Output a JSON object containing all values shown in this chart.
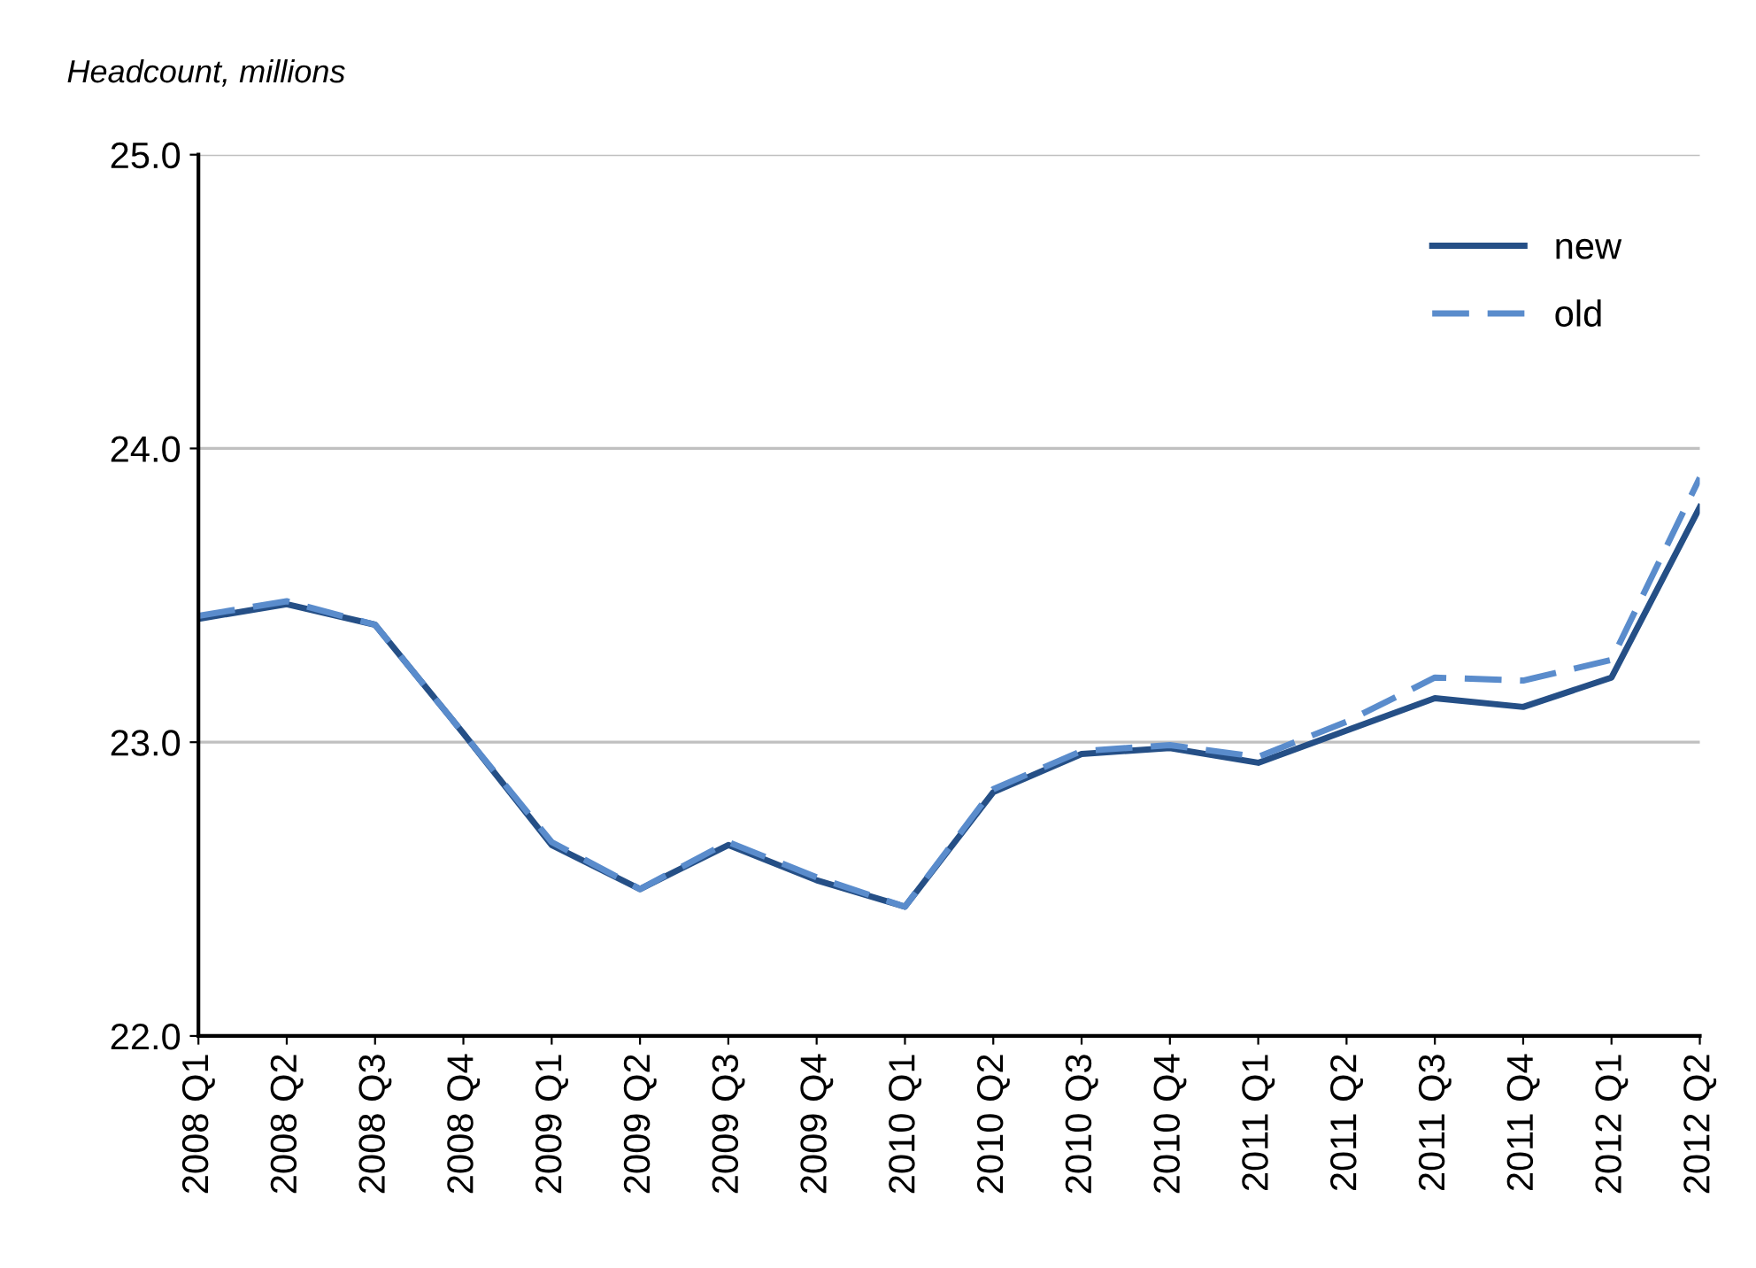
{
  "chart_data": {
    "type": "line",
    "ylabel": "Headcount, millions",
    "categories": [
      "2008 Q1",
      "2008 Q2",
      "2008 Q3",
      "2008 Q4",
      "2009 Q1",
      "2009 Q2",
      "2009 Q3",
      "2009 Q4",
      "2010 Q1",
      "2010 Q2",
      "2010 Q3",
      "2010 Q4",
      "2011 Q1",
      "2011 Q2",
      "2011 Q3",
      "2011 Q4",
      "2012 Q1",
      "2012 Q2"
    ],
    "series": [
      {
        "name": "new",
        "color": "#254f86",
        "line_style": "solid",
        "values": [
          23.42,
          23.47,
          23.4,
          23.03,
          22.65,
          22.5,
          22.65,
          22.53,
          22.44,
          22.83,
          22.96,
          22.98,
          22.93,
          23.04,
          23.15,
          23.12,
          23.22,
          23.8
        ]
      },
      {
        "name": "old",
        "color": "#5a8ccc",
        "line_style": "dashed",
        "values": [
          23.43,
          23.48,
          23.4,
          23.03,
          22.66,
          22.5,
          22.66,
          22.54,
          22.44,
          22.84,
          22.97,
          22.99,
          22.95,
          23.07,
          23.22,
          23.21,
          23.28,
          23.9
        ]
      }
    ],
    "ylim": [
      22.0,
      25.0
    ],
    "yticks": [
      {
        "value": 22.0,
        "label": "22.0"
      },
      {
        "value": 23.0,
        "label": "23.0"
      },
      {
        "value": 24.0,
        "label": "24.0"
      },
      {
        "value": 25.0,
        "label": "25.0"
      }
    ],
    "grid": "y",
    "legend": "top right"
  }
}
